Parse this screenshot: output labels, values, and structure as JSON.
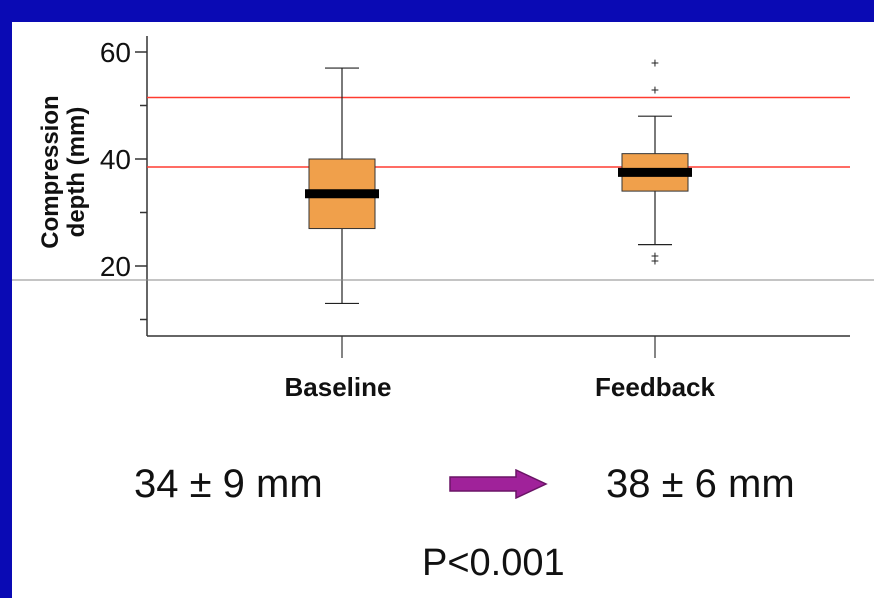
{
  "chart_data": {
    "type": "box",
    "ylabel": "Compression depth (mm)",
    "ylim": [
      10,
      62
    ],
    "yticks_major": [
      20,
      40,
      60
    ],
    "yticks_minor": [
      30,
      50
    ],
    "categories": [
      "Baseline",
      "Feedback"
    ],
    "boxes": [
      {
        "name": "Baseline",
        "whisker_low": 13,
        "q1": 27,
        "median": 33.5,
        "q3": 40,
        "whisker_high": 57,
        "outliers": []
      },
      {
        "name": "Feedback",
        "whisker_low": 24,
        "q1": 34,
        "median": 37.5,
        "q3": 41,
        "whisker_high": 48,
        "outliers": [
          21,
          22,
          53,
          58
        ]
      }
    ],
    "reference_lines": [
      38.5,
      51.5
    ],
    "reference_line_color": "#ff3b30",
    "box_color": "#f0a04b",
    "median_color": "#000000"
  },
  "stats": {
    "baseline": "34 ± 9 mm",
    "feedback": "38 ± 6 mm",
    "p_value": "P<0.001"
  },
  "colors": {
    "background": "#0a0ab4",
    "arrow": "#a0229a"
  }
}
